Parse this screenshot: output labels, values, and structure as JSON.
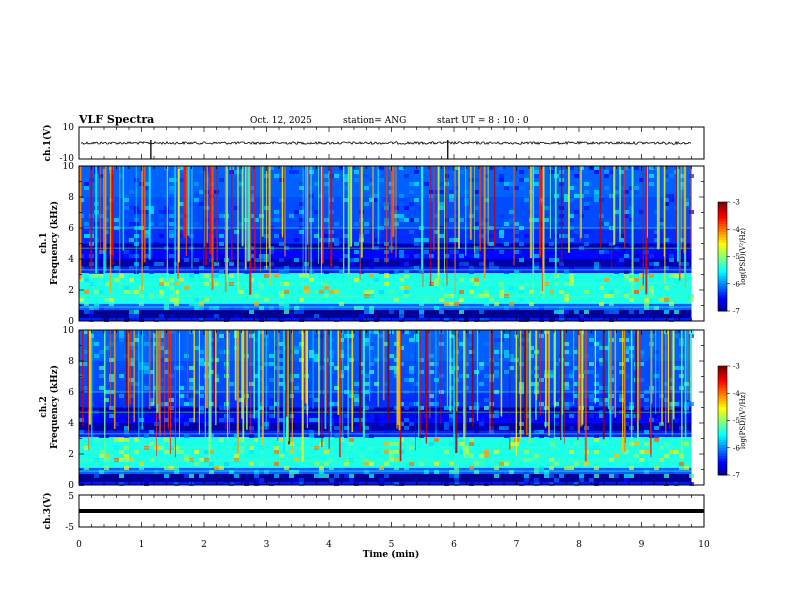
{
  "header": {
    "title": "VLF Spectra",
    "date": "Oct. 12, 2025",
    "station": "station= ANG",
    "start_ut": "start  UT =  8 : 10 : 0"
  },
  "chart_data": [
    {
      "type": "line",
      "panel": "ch1-waveform",
      "ylabel": "ch.1(V)",
      "ylim": [
        -10,
        10
      ],
      "yticks": [
        "10",
        "-10"
      ],
      "xlim": [
        0,
        10
      ],
      "baseline": 0,
      "spikes_at_min": [
        1.15,
        5.9
      ]
    },
    {
      "type": "heatmap",
      "panel": "ch1-spectrogram",
      "ylabel": "ch.1\nFrequency (kHz)",
      "ylim": [
        0,
        10
      ],
      "yticks": [
        "0",
        "2",
        "4",
        "6",
        "8",
        "10"
      ],
      "xlim": [
        0,
        10
      ],
      "data_end_min": 9.8,
      "colorbar": {
        "label": "log(PSD)(V²/Hz)",
        "range": [
          -7,
          -3
        ],
        "ticks": [
          "-3",
          "-4",
          "-5",
          "-6",
          "-7"
        ]
      }
    },
    {
      "type": "heatmap",
      "panel": "ch2-spectrogram",
      "ylabel": "ch.2\nFrequency (kHz)",
      "ylim": [
        0,
        10
      ],
      "yticks": [
        "0",
        "2",
        "4",
        "6",
        "8",
        "10"
      ],
      "xlim": [
        0,
        10
      ],
      "data_end_min": 9.8,
      "colorbar": {
        "label": "log(PSD)(V²/Hz)",
        "range": [
          -7,
          -3
        ],
        "ticks": [
          "-3",
          "-4",
          "-5",
          "-6",
          "-7"
        ]
      }
    },
    {
      "type": "line",
      "panel": "ch3-waveform",
      "ylabel": "ch.3(V)",
      "ylim": [
        -5,
        5
      ],
      "yticks": [
        "5",
        "-5"
      ],
      "xlim": [
        0,
        10
      ],
      "value": 0,
      "xlabel": "Time (min)",
      "xticks": [
        "0",
        "1",
        "2",
        "3",
        "4",
        "5",
        "6",
        "7",
        "8",
        "9",
        "10"
      ]
    }
  ]
}
